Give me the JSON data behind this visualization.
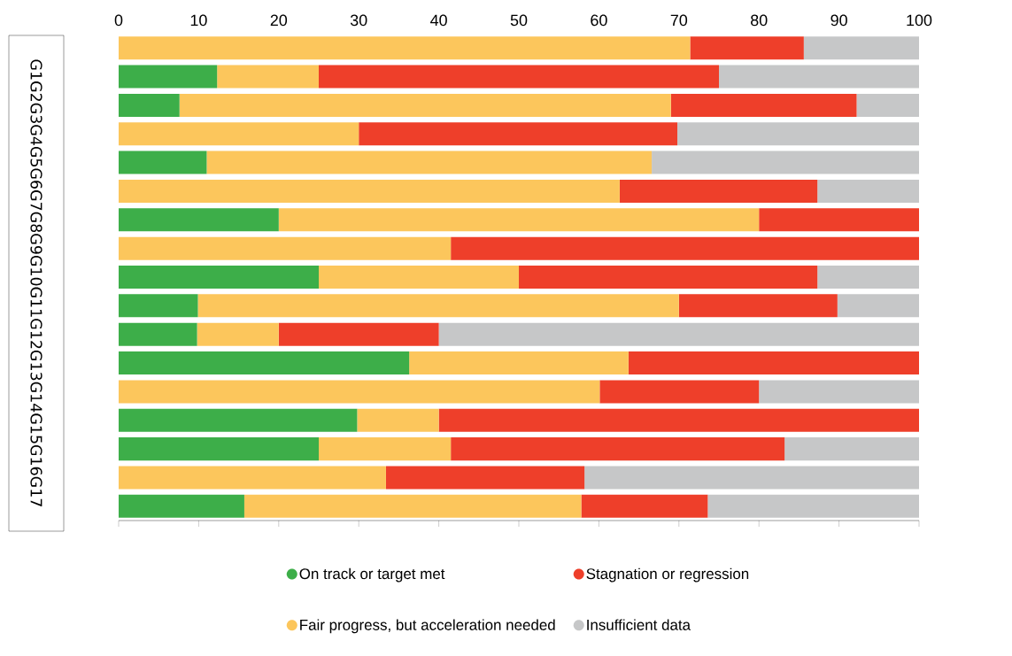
{
  "chart_data": {
    "type": "bar",
    "orientation": "horizontal",
    "stacked": true,
    "annotations": [
      "G1G2G3G4G5G6G7G8G9G10G11G12G13G14G15G16G17"
    ],
    "categories": [
      null,
      null,
      null,
      null,
      null,
      null,
      null,
      null,
      null,
      null,
      null,
      null,
      null,
      null,
      null,
      null,
      null
    ],
    "series": [
      {
        "name": "On track or target met",
        "color": "#3dae49",
        "values": [
          0,
          12.3,
          7.6,
          0,
          11,
          0,
          20,
          0,
          25,
          9.9,
          9.8,
          36.3,
          0,
          29.8,
          25,
          0,
          15.7
        ]
      },
      {
        "name": "Fair progress, but acceleration needed",
        "color": "#fcc65c",
        "values": [
          71.4,
          12.7,
          61.4,
          30,
          55.6,
          62.6,
          60,
          41.5,
          25,
          60.1,
          10.2,
          27.4,
          60.1,
          10.2,
          16.5,
          33.4,
          42.1
        ]
      },
      {
        "name": "Stagnation or regression",
        "color": "#ee3f2a",
        "values": [
          14.2,
          50,
          23.2,
          39.8,
          0,
          24.7,
          20,
          58.5,
          37.3,
          19.8,
          20,
          36.3,
          19.9,
          60,
          41.7,
          24.8,
          15.8
        ]
      },
      {
        "name": "Insufficient data",
        "color": "#c6c7c8",
        "values": [
          14.4,
          25,
          7.8,
          30.2,
          33.4,
          12.7,
          0,
          0,
          12.7,
          10.2,
          60,
          0,
          20,
          0,
          16.8,
          41.8,
          26.4
        ]
      }
    ],
    "xlim": [
      0,
      100
    ],
    "xticks": [
      0,
      10,
      20,
      30,
      40,
      50,
      60,
      70,
      80,
      90,
      100
    ],
    "legend": "bottom",
    "grid": false
  }
}
